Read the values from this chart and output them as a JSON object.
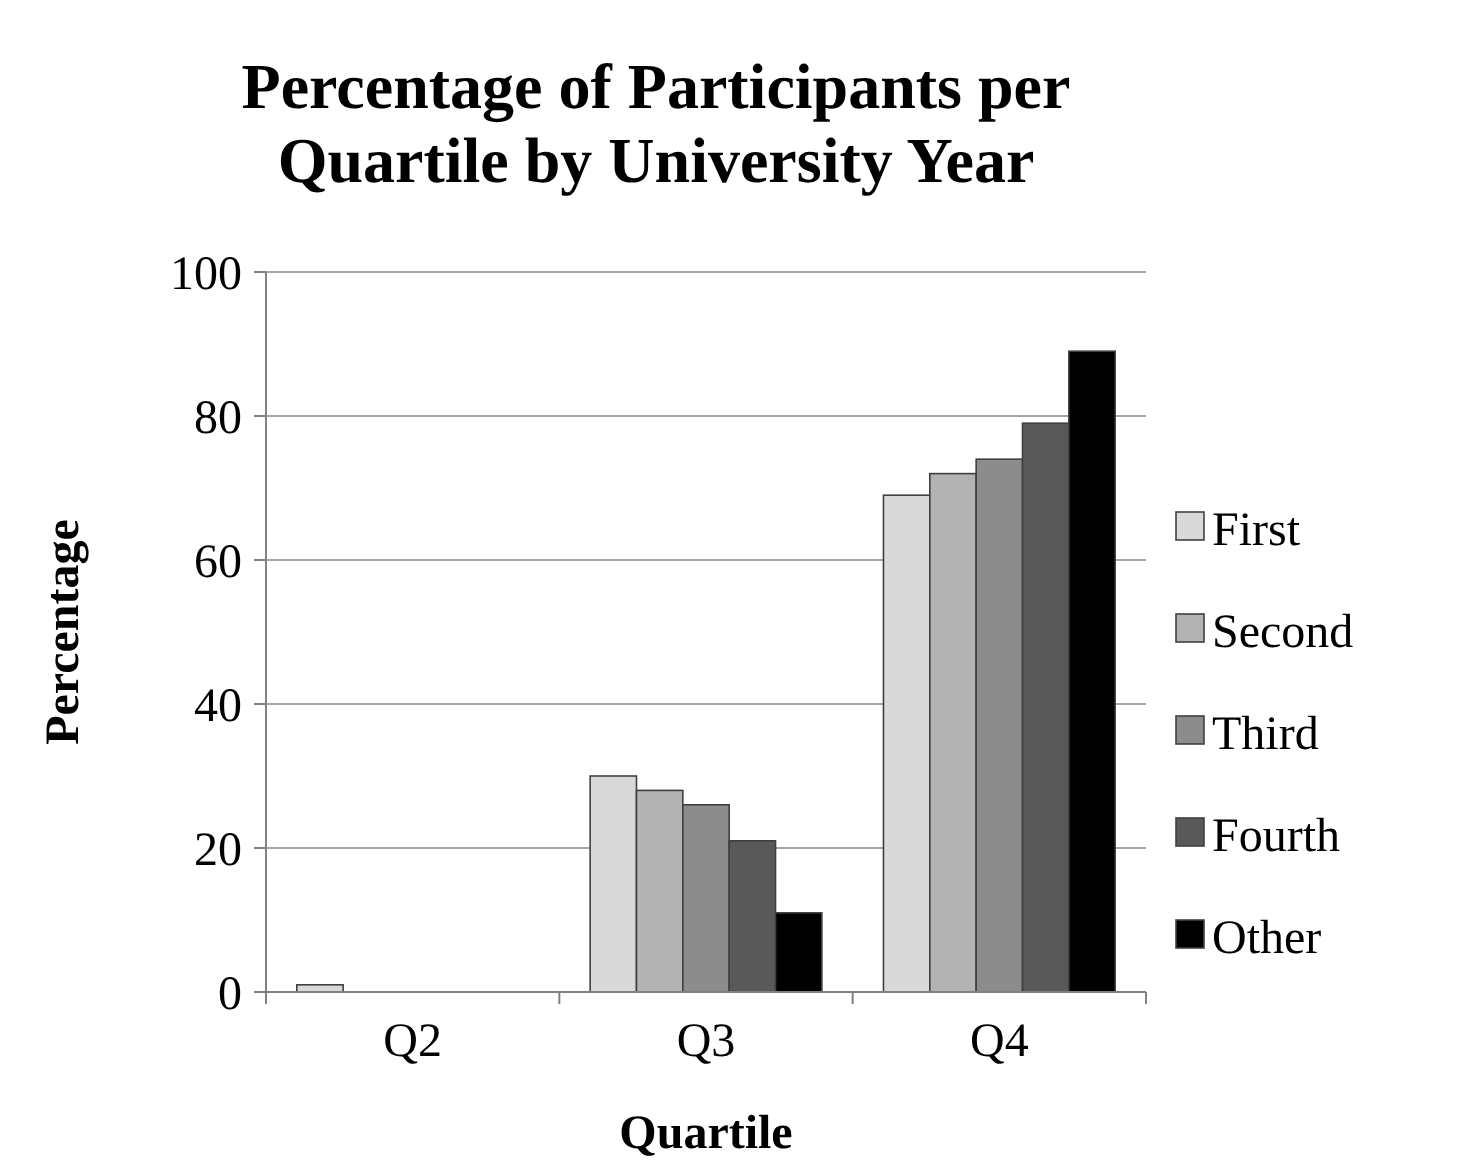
{
  "chart_data": {
    "type": "bar",
    "title": "Percentage of Participants per Quartile by University Year",
    "xlabel": "Quartile",
    "ylabel": "Percentage",
    "categories": [
      "Q2",
      "Q3",
      "Q4"
    ],
    "series": [
      {
        "name": "First",
        "color": "#d9d9d9",
        "values": [
          1,
          30,
          69
        ]
      },
      {
        "name": "Second",
        "color": "#b3b3b3",
        "values": [
          0,
          28,
          72
        ]
      },
      {
        "name": "Third",
        "color": "#8c8c8c",
        "values": [
          0,
          26,
          74
        ]
      },
      {
        "name": "Fourth",
        "color": "#595959",
        "values": [
          0,
          21,
          79
        ]
      },
      {
        "name": "Other",
        "color": "#000000",
        "values": [
          0,
          11,
          89
        ]
      }
    ],
    "ylim": [
      0,
      100
    ],
    "yticks": [
      0,
      20,
      40,
      60,
      80,
      100
    ],
    "grid": "y",
    "legend": "right"
  }
}
